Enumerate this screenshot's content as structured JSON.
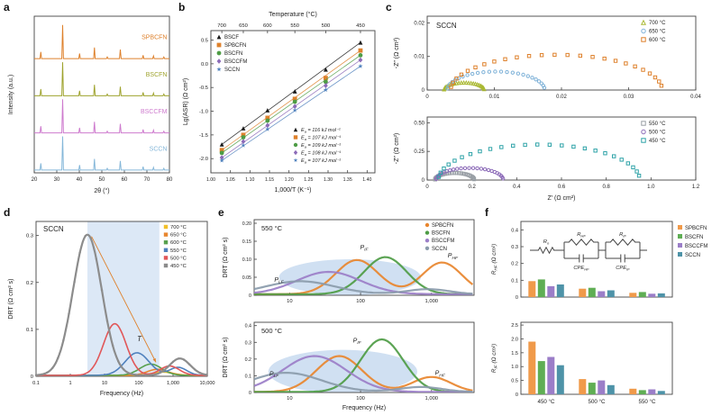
{
  "figure_labels": {
    "a": "a",
    "b": "b",
    "c": "c",
    "d": "d",
    "e": "e",
    "f": "f"
  },
  "chart_data": [
    {
      "id": "a",
      "type": "line",
      "subtype": "xrd",
      "xlabel": "2θ (°)",
      "ylabel": "Intensity (a.u.)",
      "xlim": [
        20,
        80
      ],
      "xticks": [
        20,
        30,
        40,
        50,
        60,
        70,
        80
      ],
      "ylim": [
        -0.08,
        4.35
      ],
      "peak_positions_2theta": [
        22.9,
        32.6,
        40.1,
        46.7,
        52.4,
        58.2,
        68.3,
        72.9,
        77.5
      ],
      "peak_rel_intensities": [
        0.2,
        1.0,
        0.15,
        0.33,
        0.05,
        0.27,
        0.1,
        0.08,
        0.05
      ],
      "series": [
        {
          "name": "SPBCFN",
          "color": "#DE812C",
          "offset": 3.15,
          "scale": 0.95
        },
        {
          "name": "BSCFN",
          "color": "#9FA32E",
          "offset": 2.1,
          "scale": 0.95
        },
        {
          "name": "BSCCFM",
          "color": "#CE7BCE",
          "offset": 1.05,
          "scale": 0.95
        },
        {
          "name": "SCCN",
          "color": "#85B7D9",
          "offset": 0.0,
          "scale": 0.95
        }
      ]
    },
    {
      "id": "b",
      "type": "scatter-line",
      "subtype": "arrhenius",
      "top_axis_label": "Temperature (°C)",
      "top_ticks": [
        {
          "t": "700",
          "x": 1.028
        },
        {
          "t": "650",
          "x": 1.083
        },
        {
          "t": "600",
          "x": 1.145
        },
        {
          "t": "550",
          "x": 1.215
        },
        {
          "t": "500",
          "x": 1.294
        },
        {
          "t": "450",
          "x": 1.383
        }
      ],
      "xlabel": "1,000/T (K⁻¹)",
      "ylabel": "Lg(ASR) (Ω cm²)",
      "xlim": [
        1.0,
        1.42
      ],
      "xticks": [
        1.0,
        1.05,
        1.1,
        1.15,
        1.2,
        1.25,
        1.3,
        1.35,
        1.4
      ],
      "ylim": [
        -2.3,
        0.7
      ],
      "yticks": [
        -2.0,
        -1.5,
        -1.0,
        -0.5,
        0.0,
        0.5
      ],
      "x": [
        1.028,
        1.083,
        1.145,
        1.215,
        1.294,
        1.383
      ],
      "series": [
        {
          "name": "BSCF",
          "marker": "triangle",
          "color": "#1A1A1A",
          "y": [
            -1.7,
            -1.36,
            -0.98,
            -0.58,
            -0.12,
            0.45
          ],
          "ea_label": "E|a| = 116 kJ mol⁻¹"
        },
        {
          "name": "SPBCFN",
          "marker": "square",
          "color": "#DE812C",
          "y": [
            -1.82,
            -1.5,
            -1.14,
            -0.74,
            -0.3,
            0.28
          ],
          "ea_label": "E|a| = 107 kJ mol⁻¹"
        },
        {
          "name": "BSCFN",
          "marker": "circle",
          "color": "#4E9C45",
          "y": [
            -1.88,
            -1.55,
            -1.2,
            -0.8,
            -0.38,
            0.18
          ],
          "ea_label": "E|a| = 109 kJ mol⁻¹"
        },
        {
          "name": "BSCCFM",
          "marker": "diamond",
          "color": "#8C6BB8",
          "y": [
            -1.98,
            -1.64,
            -1.3,
            -0.9,
            -0.46,
            0.08
          ],
          "ea_label": "E|a| = 108 kJ mol⁻¹"
        },
        {
          "name": "SCCN",
          "marker": "star",
          "color": "#4F81BD",
          "y": [
            -2.04,
            -1.72,
            -1.38,
            -0.98,
            -0.55,
            -0.05
          ],
          "ea_label": "E|a| = 107 kJ mol⁻¹"
        }
      ]
    },
    {
      "id": "c",
      "type": "scatter",
      "subtype": "nyquist",
      "title": "SCCN",
      "xlabel": "Z′ (Ω cm²)",
      "subplots": [
        {
          "ylabel": "-Z″ (Ω cm²)",
          "xlim": [
            0,
            0.04
          ],
          "xtickvals": [
            0,
            0.01,
            0.02,
            0.03,
            0.04
          ],
          "xticks": [
            "0",
            "0.01",
            "0.02",
            "0.03",
            "0.04"
          ],
          "ylim": [
            0,
            0.022
          ],
          "ytickvals": [
            0,
            0.01,
            0.02
          ],
          "yticks": [
            "0",
            "0.01",
            "0.02"
          ],
          "series": [
            {
              "name": "700 °C",
              "marker": "triangle",
              "color": "#A9B832",
              "x0": 0.0025,
              "diameter": 0.006,
              "height": 0.0022
            },
            {
              "name": "650 °C",
              "marker": "circle",
              "color": "#7FB2D8",
              "x0": 0.003,
              "diameter": 0.0145,
              "height": 0.0055
            },
            {
              "name": "600 °C",
              "marker": "square",
              "color": "#DE812C",
              "x0": 0.0035,
              "diameter": 0.0315,
              "height": 0.0105
            }
          ]
        },
        {
          "ylabel": "-Z″ (Ω cm²)",
          "xlim": [
            0,
            1.2
          ],
          "xtickvals": [
            0,
            0.2,
            0.4,
            0.6,
            0.8,
            1.0,
            1.2
          ],
          "xticks": [
            "0",
            "0.2",
            "0.4",
            "0.6",
            "0.8",
            "1.0",
            "1.2"
          ],
          "ylim": [
            0,
            0.55
          ],
          "ytickvals": [
            0,
            0.25,
            0.5
          ],
          "yticks": [
            "0",
            "0.25",
            "0.50"
          ],
          "series": [
            {
              "name": "550 °C",
              "marker": "square",
              "color": "#999FA5",
              "x0": 0.035,
              "diameter": 0.175,
              "height": 0.062
            },
            {
              "name": "500 °C",
              "marker": "circle",
              "color": "#8C6BB8",
              "x0": 0.04,
              "diameter": 0.3,
              "height": 0.105
            },
            {
              "name": "450 °C",
              "marker": "square",
              "color": "#2FA3A8",
              "x0": 0.05,
              "diameter": 0.9,
              "height": 0.31
            }
          ]
        }
      ]
    },
    {
      "id": "d",
      "type": "line",
      "subtype": "drt",
      "title": "SCCN",
      "xlabel": "Frequency (Hz)",
      "ylabel": "DRT (Ω cm² s)",
      "xlog_range": [
        -1,
        4
      ],
      "xticks": [
        {
          "v": -1,
          "label": "0.1"
        },
        {
          "v": 0,
          "label": "1"
        },
        {
          "v": 1,
          "label": "10"
        },
        {
          "v": 2,
          "label": "100"
        },
        {
          "v": 3,
          "label": "1,000"
        },
        {
          "v": 4,
          "label": "10,000"
        }
      ],
      "ylim": [
        0,
        0.33
      ],
      "yticks": [
        {
          "v": 0,
          "label": "0"
        },
        {
          "v": 0.1,
          "label": "0.1"
        },
        {
          "v": 0.2,
          "label": "0.2"
        },
        {
          "v": 0.3,
          "label": "0.3"
        }
      ],
      "shaded_band_log_hz": [
        0.5,
        2.6
      ],
      "band_color": "#DCE8F6",
      "arrow": {
        "from": [
          0.62,
          0.298
        ],
        "to": [
          2.5,
          0.03
        ],
        "label": "T",
        "color": "#DE812C",
        "label_pos": [
          1.95,
          0.075
        ]
      },
      "series": [
        {
          "name": "700 °C",
          "color": "#F2C029",
          "peaks": [
            [
              2.7,
              0.3,
              0.007
            ]
          ]
        },
        {
          "name": "650 °C",
          "color": "#E8862E",
          "peaks": [
            [
              2.55,
              0.3,
              0.013
            ]
          ]
        },
        {
          "name": "600 °C",
          "color": "#58A14E",
          "peaks": [
            [
              2.35,
              0.32,
              0.024
            ]
          ]
        },
        {
          "name": "550 °C",
          "color": "#4F81BD",
          "peaks": [
            [
              1.95,
              0.35,
              0.048
            ],
            [
              3.15,
              0.25,
              0.017
            ]
          ]
        },
        {
          "name": "500 °C",
          "color": "#E15759",
          "peaks": [
            [
              1.3,
              0.33,
              0.11
            ],
            [
              2.9,
              0.28,
              0.02
            ]
          ]
        },
        {
          "name": "450 °C",
          "color": "#8C8C8C",
          "peaks": [
            [
              0.5,
              0.42,
              0.3
            ],
            [
              3.2,
              0.3,
              0.036
            ]
          ]
        }
      ]
    },
    {
      "id": "e",
      "type": "line",
      "subtype": "drt-compare",
      "xlabel": "Frequency (Hz)",
      "ylabel": "DRT (Ω cm² s)",
      "xlog_range": [
        0.5,
        3.6
      ],
      "xticks": [
        {
          "v": 1,
          "label": "10"
        },
        {
          "v": 2,
          "label": "100"
        },
        {
          "v": 3,
          "label": "1,000"
        }
      ],
      "legend": [
        "SPBCFN",
        "BSCFN",
        "BSCCFM",
        "SCCN"
      ],
      "series_colors": {
        "SPBCFN": "#E8862E",
        "BSCFN": "#4E9C45",
        "BSCCFM": "#9B7EC8",
        "SCCN": "#8A9BAB"
      },
      "subplots": [
        {
          "title": "550 °C",
          "ylim": [
            0,
            0.21
          ],
          "yticks": [
            {
              "v": 0,
              "label": "0"
            },
            {
              "v": 0.05,
              "label": "0.05"
            },
            {
              "v": 0.1,
              "label": "0.10"
            },
            {
              "v": 0.15,
              "label": "0.15"
            },
            {
              "v": 0.2,
              "label": "0.20"
            }
          ],
          "ellipse": {
            "cx": 1.85,
            "cy": 0.05,
            "rx_log": 1.0,
            "ry": 0.05,
            "color": "#A9C7E8"
          },
          "labels": [
            {
              "text": "P|LF|",
              "x": 0.85,
              "y": 0.038
            },
            {
              "text": "P|IF|",
              "x": 2.05,
              "y": 0.128
            },
            {
              "text": "P|HF|",
              "x": 3.3,
              "y": 0.105
            }
          ],
          "series": [
            {
              "name": "SPBCFN",
              "peaks": [
                [
                  1.95,
                  0.3,
                  0.095
                ],
                [
                  3.15,
                  0.28,
                  0.088
                ]
              ]
            },
            {
              "name": "BSCFN",
              "peaks": [
                [
                  2.35,
                  0.3,
                  0.103
                ]
              ]
            },
            {
              "name": "BSCCFM",
              "peaks": [
                [
                  1.55,
                  0.45,
                  0.062
                ]
              ]
            },
            {
              "name": "SCCN",
              "peaks": [
                [
                  1.15,
                  0.48,
                  0.036
                ],
                [
                  2.95,
                  0.3,
                  0.014
                ]
              ]
            }
          ]
        },
        {
          "title": "500 °C",
          "ylim": [
            0,
            0.42
          ],
          "yticks": [
            {
              "v": 0,
              "label": "0"
            },
            {
              "v": 0.1,
              "label": "0.1"
            },
            {
              "v": 0.2,
              "label": "0.2"
            },
            {
              "v": 0.3,
              "label": "0.3"
            },
            {
              "v": 0.4,
              "label": "0.4"
            }
          ],
          "ellipse": {
            "cx": 1.75,
            "cy": 0.125,
            "rx_log": 1.05,
            "ry": 0.13,
            "color": "#A9C7E8"
          },
          "labels": [
            {
              "text": "P|LF|",
              "x": 0.78,
              "y": 0.1
            },
            {
              "text": "P|IF|",
              "x": 1.95,
              "y": 0.3
            },
            {
              "text": "P|HF|",
              "x": 3.12,
              "y": 0.105
            }
          ],
          "series": [
            {
              "name": "SPBCFN",
              "peaks": [
                [
                  1.7,
                  0.32,
                  0.215
                ],
                [
                  3.0,
                  0.27,
                  0.09
                ]
              ]
            },
            {
              "name": "BSCFN",
              "peaks": [
                [
                  2.3,
                  0.3,
                  0.315
                ]
              ]
            },
            {
              "name": "BSCCFM",
              "peaks": [
                [
                  1.35,
                  0.45,
                  0.215
                ]
              ]
            },
            {
              "name": "SCCN",
              "peaks": [
                [
                  0.95,
                  0.5,
                  0.115
                ],
                [
                  2.85,
                  0.3,
                  0.03
                ]
              ]
            }
          ]
        }
      ]
    },
    {
      "id": "f",
      "type": "bar",
      "categories": [
        "450 °C",
        "500 °C",
        "550 °C"
      ],
      "series": [
        {
          "name": "SPBCFN",
          "color": "#F09A4A",
          "rhf": [
            0.095,
            0.05,
            0.025
          ],
          "rif": [
            1.9,
            0.55,
            0.2
          ]
        },
        {
          "name": "BSCFN",
          "color": "#5FAE54",
          "rhf": [
            0.105,
            0.055,
            0.03
          ],
          "rif": [
            1.2,
            0.42,
            0.15
          ]
        },
        {
          "name": "BSCCFM",
          "color": "#9B7EC8",
          "rhf": [
            0.065,
            0.035,
            0.02
          ],
          "rif": [
            1.35,
            0.5,
            0.18
          ]
        },
        {
          "name": "SCCN",
          "color": "#4E93A8",
          "rhf": [
            0.075,
            0.04,
            0.022
          ],
          "rif": [
            1.05,
            0.33,
            0.12
          ]
        }
      ],
      "subplots": [
        {
          "ylabel": "R|HF| (Ω cm²)",
          "key": "rhf",
          "ylim": [
            0,
            0.45
          ],
          "yticks": [
            {
              "v": 0,
              "label": "0"
            },
            {
              "v": 0.1,
              "label": "0.1"
            },
            {
              "v": 0.2,
              "label": "0.2"
            },
            {
              "v": 0.3,
              "label": "0.3"
            },
            {
              "v": 0.4,
              "label": "0.4"
            }
          ]
        },
        {
          "ylabel": "R|IF| (Ω cm²)",
          "key": "rif",
          "ylim": [
            0,
            2.6
          ],
          "yticks": [
            {
              "v": 0,
              "label": "0"
            },
            {
              "v": 0.5,
              "label": "0.5"
            },
            {
              "v": 1.0,
              "label": "1.0"
            },
            {
              "v": 1.5,
              "label": "1.5"
            },
            {
              "v": 2.0,
              "label": "2.0"
            },
            {
              "v": 2.5,
              "label": "2.5"
            }
          ]
        }
      ],
      "circuit": {
        "labels": {
          "r0": "R|o|",
          "rhf": "R|HF|",
          "rif": "R|IF|",
          "cpehf": "CPE|HF|",
          "cpeif": "CPE|IF|"
        }
      }
    }
  ]
}
